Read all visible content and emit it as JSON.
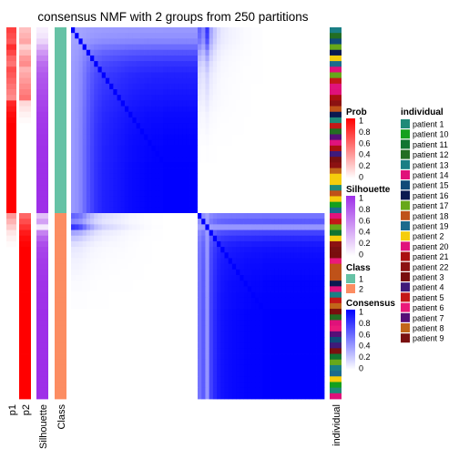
{
  "chart_data": {
    "type": "heatmap",
    "title": "consensus NMF with 2 groups from 250 partitions",
    "n_samples": 66,
    "annotation_columns": [
      "p1",
      "p2",
      "Silhouette",
      "Class"
    ],
    "right_annotation": "individual",
    "group_sizes": {
      "class1": 33,
      "class2": 33
    },
    "values": {
      "p1": [
        0.75,
        0.7,
        0.65,
        0.82,
        0.72,
        0.6,
        0.55,
        0.7,
        0.65,
        0.6,
        0.55,
        0.5,
        0.45,
        0.85,
        0.9,
        0.95,
        0.98,
        1,
        1,
        1,
        1,
        1,
        1,
        1,
        1,
        1,
        1,
        1,
        1,
        1,
        1,
        1,
        1,
        0.4,
        0.3,
        0.2,
        0.1,
        0.05,
        0.02,
        0,
        0,
        0,
        0,
        0,
        0,
        0,
        0,
        0,
        0,
        0,
        0,
        0,
        0,
        0,
        0,
        0,
        0,
        0,
        0,
        0,
        0,
        0,
        0,
        0,
        0,
        0
      ],
      "p2": [
        0.25,
        0.3,
        0.35,
        0.18,
        0.28,
        0.4,
        0.45,
        0.3,
        0.35,
        0.4,
        0.45,
        0.5,
        0.55,
        0.15,
        0.1,
        0.05,
        0.02,
        0,
        0,
        0,
        0,
        0,
        0,
        0,
        0,
        0,
        0,
        0,
        0,
        0,
        0,
        0,
        0,
        0.6,
        0.7,
        0.8,
        0.9,
        0.95,
        0.98,
        1,
        1,
        1,
        1,
        1,
        1,
        1,
        1,
        1,
        1,
        1,
        1,
        1,
        1,
        1,
        1,
        1,
        1,
        1,
        1,
        1,
        1,
        1,
        1,
        1,
        1,
        1
      ],
      "silhouette": [
        0.08,
        0.12,
        0.2,
        0.35,
        0.5,
        0.6,
        0.7,
        0.75,
        0.8,
        0.82,
        0.84,
        0.86,
        0.88,
        0.9,
        0.92,
        0.94,
        0.95,
        0.96,
        0.97,
        0.98,
        0.98,
        0.99,
        0.99,
        0.99,
        1,
        1,
        1,
        1,
        1,
        1,
        1,
        1,
        1,
        0.3,
        0.45,
        0.1,
        0.6,
        0.75,
        0.85,
        0.9,
        0.92,
        0.94,
        0.95,
        0.96,
        0.97,
        0.98,
        0.98,
        0.99,
        0.99,
        0.99,
        1,
        1,
        1,
        1,
        1,
        1,
        1,
        1,
        1,
        1,
        1,
        1,
        1,
        1,
        1,
        1
      ],
      "individual": [
        "patient 13",
        "patient 12",
        "patient 15",
        "patient 17",
        "patient 16",
        "patient 2",
        "patient 19",
        "patient 14",
        "patient 17",
        "patient 5",
        "patient 20",
        "patient 14",
        "patient 21",
        "patient 22",
        "patient 18",
        "patient 16",
        "patient 1",
        "patient 5",
        "patient 12",
        "patient 7",
        "patient 20",
        "patient 21",
        "patient 4",
        "patient 9",
        "patient 22",
        "patient 8",
        "patient 2",
        "patient 2",
        "patient 1",
        "patient 18",
        "patient 2",
        "patient 10",
        "patient 19",
        "patient 20",
        "patient 5",
        "patient 17",
        "patient 11",
        "patient 2",
        "patient 22",
        "patient 9",
        "patient 3",
        "patient 6",
        "patient 18",
        "patient 18",
        "patient 18",
        "patient 16",
        "patient 20",
        "patient 13",
        "patient 5",
        "patient 8",
        "patient 3",
        "patient 12",
        "patient 14",
        "patient 6",
        "patient 7",
        "patient 15",
        "patient 4",
        "patient 9",
        "patient 11",
        "patient 17",
        "patient 13",
        "patient 19",
        "patient 2",
        "patient 10",
        "patient 1",
        "patient 14"
      ]
    },
    "legends": {
      "prob": {
        "title": "Prob",
        "ticks": [
          "1",
          "0.8",
          "0.6",
          "0.4",
          "0.2",
          "0"
        ],
        "colors": [
          "#ffffff",
          "#ff0000"
        ]
      },
      "silhouette": {
        "title": "Silhouette",
        "ticks": [
          "1",
          "0.8",
          "0.6",
          "0.4",
          "0.2",
          "0"
        ],
        "colors": [
          "#ffffff",
          "#9e2fe8"
        ]
      },
      "class": {
        "title": "Class",
        "items": [
          {
            "label": "1",
            "color": "#66c2a5"
          },
          {
            "label": "2",
            "color": "#fc8d62"
          }
        ]
      },
      "consensus": {
        "title": "Consensus",
        "ticks": [
          "1",
          "0.8",
          "0.6",
          "0.4",
          "0.2",
          "0"
        ],
        "colors": [
          "#ffffff",
          "#0000ff"
        ]
      },
      "individual": {
        "title": "individual",
        "items": [
          {
            "label": "patient 1",
            "color": "#1f8a78"
          },
          {
            "label": "patient 10",
            "color": "#15a01d"
          },
          {
            "label": "patient 11",
            "color": "#117531"
          },
          {
            "label": "patient 12",
            "color": "#236e23"
          },
          {
            "label": "patient 13",
            "color": "#1a7f85"
          },
          {
            "label": "patient 14",
            "color": "#e0117a"
          },
          {
            "label": "patient 15",
            "color": "#104a78"
          },
          {
            "label": "patient 16",
            "color": "#0b1a50"
          },
          {
            "label": "patient 17",
            "color": "#67a81a"
          },
          {
            "label": "patient 18",
            "color": "#bf5219"
          },
          {
            "label": "patient 19",
            "color": "#1c6b8c"
          },
          {
            "label": "patient 2",
            "color": "#f5cd0c"
          },
          {
            "label": "patient 20",
            "color": "#e0137c"
          },
          {
            "label": "patient 21",
            "color": "#aa1010"
          },
          {
            "label": "patient 22",
            "color": "#8c1212"
          },
          {
            "label": "patient 3",
            "color": "#7a0e0e"
          },
          {
            "label": "patient 4",
            "color": "#3f1a7a"
          },
          {
            "label": "patient 5",
            "color": "#c41818"
          },
          {
            "label": "patient 6",
            "color": "#ea1a7a"
          },
          {
            "label": "patient 7",
            "color": "#560f78"
          },
          {
            "label": "patient 8",
            "color": "#c2661a"
          },
          {
            "label": "patient 9",
            "color": "#7a1010"
          }
        ]
      }
    }
  }
}
